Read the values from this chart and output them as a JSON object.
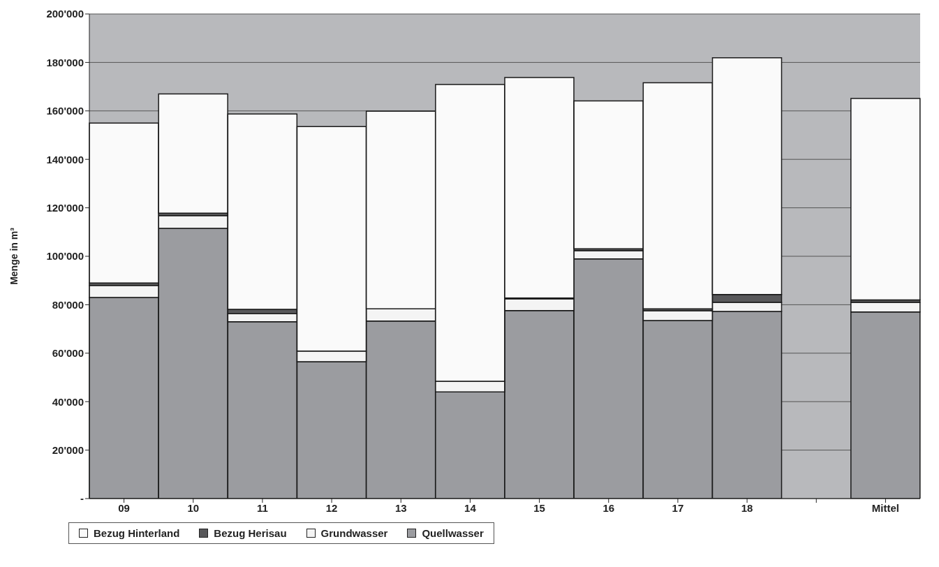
{
  "chart_data": {
    "type": "bar",
    "stacked": true,
    "ylabel": "Menge in m³",
    "categories": [
      "09",
      "10",
      "11",
      "12",
      "13",
      "14",
      "15",
      "16",
      "17",
      "18",
      null,
      "Mittel"
    ],
    "series": [
      {
        "name": "Quellwasser",
        "color": "#9b9ca0",
        "values": [
          83000,
          111500,
          73000,
          56500,
          73300,
          44000,
          77600,
          98900,
          73500,
          77200,
          null,
          77000
        ]
      },
      {
        "name": "Grundwasser",
        "color": "#f4f4f4",
        "values": [
          5000,
          5300,
          3300,
          4400,
          5000,
          4400,
          4800,
          3400,
          4000,
          3800,
          null,
          4000
        ]
      },
      {
        "name": "Bezug Herisau",
        "color": "#58585a",
        "values": [
          1000,
          1000,
          1800,
          0,
          null,
          null,
          400,
          800,
          800,
          3200,
          null,
          1000
        ]
      },
      {
        "name": "Bezug Hinterland",
        "color": "#fafafa",
        "values": [
          66000,
          49200,
          80600,
          92600,
          81600,
          122500,
          91000,
          61000,
          93300,
          97700,
          null,
          83100
        ]
      }
    ],
    "ylim": [
      0,
      200000
    ],
    "yticks": [
      {
        "value": 0,
        "label": "-"
      },
      {
        "value": 20000,
        "label": "20'000"
      },
      {
        "value": 40000,
        "label": "40'000"
      },
      {
        "value": 60000,
        "label": "60'000"
      },
      {
        "value": 80000,
        "label": "80'000"
      },
      {
        "value": 100000,
        "label": "100'000"
      },
      {
        "value": 120000,
        "label": "120'000"
      },
      {
        "value": 140000,
        "label": "140'000"
      },
      {
        "value": 160000,
        "label": "160'000"
      },
      {
        "value": 180000,
        "label": "180'000"
      },
      {
        "value": 200000,
        "label": "200'000"
      }
    ],
    "grid": "y",
    "legend": "bottom left"
  }
}
